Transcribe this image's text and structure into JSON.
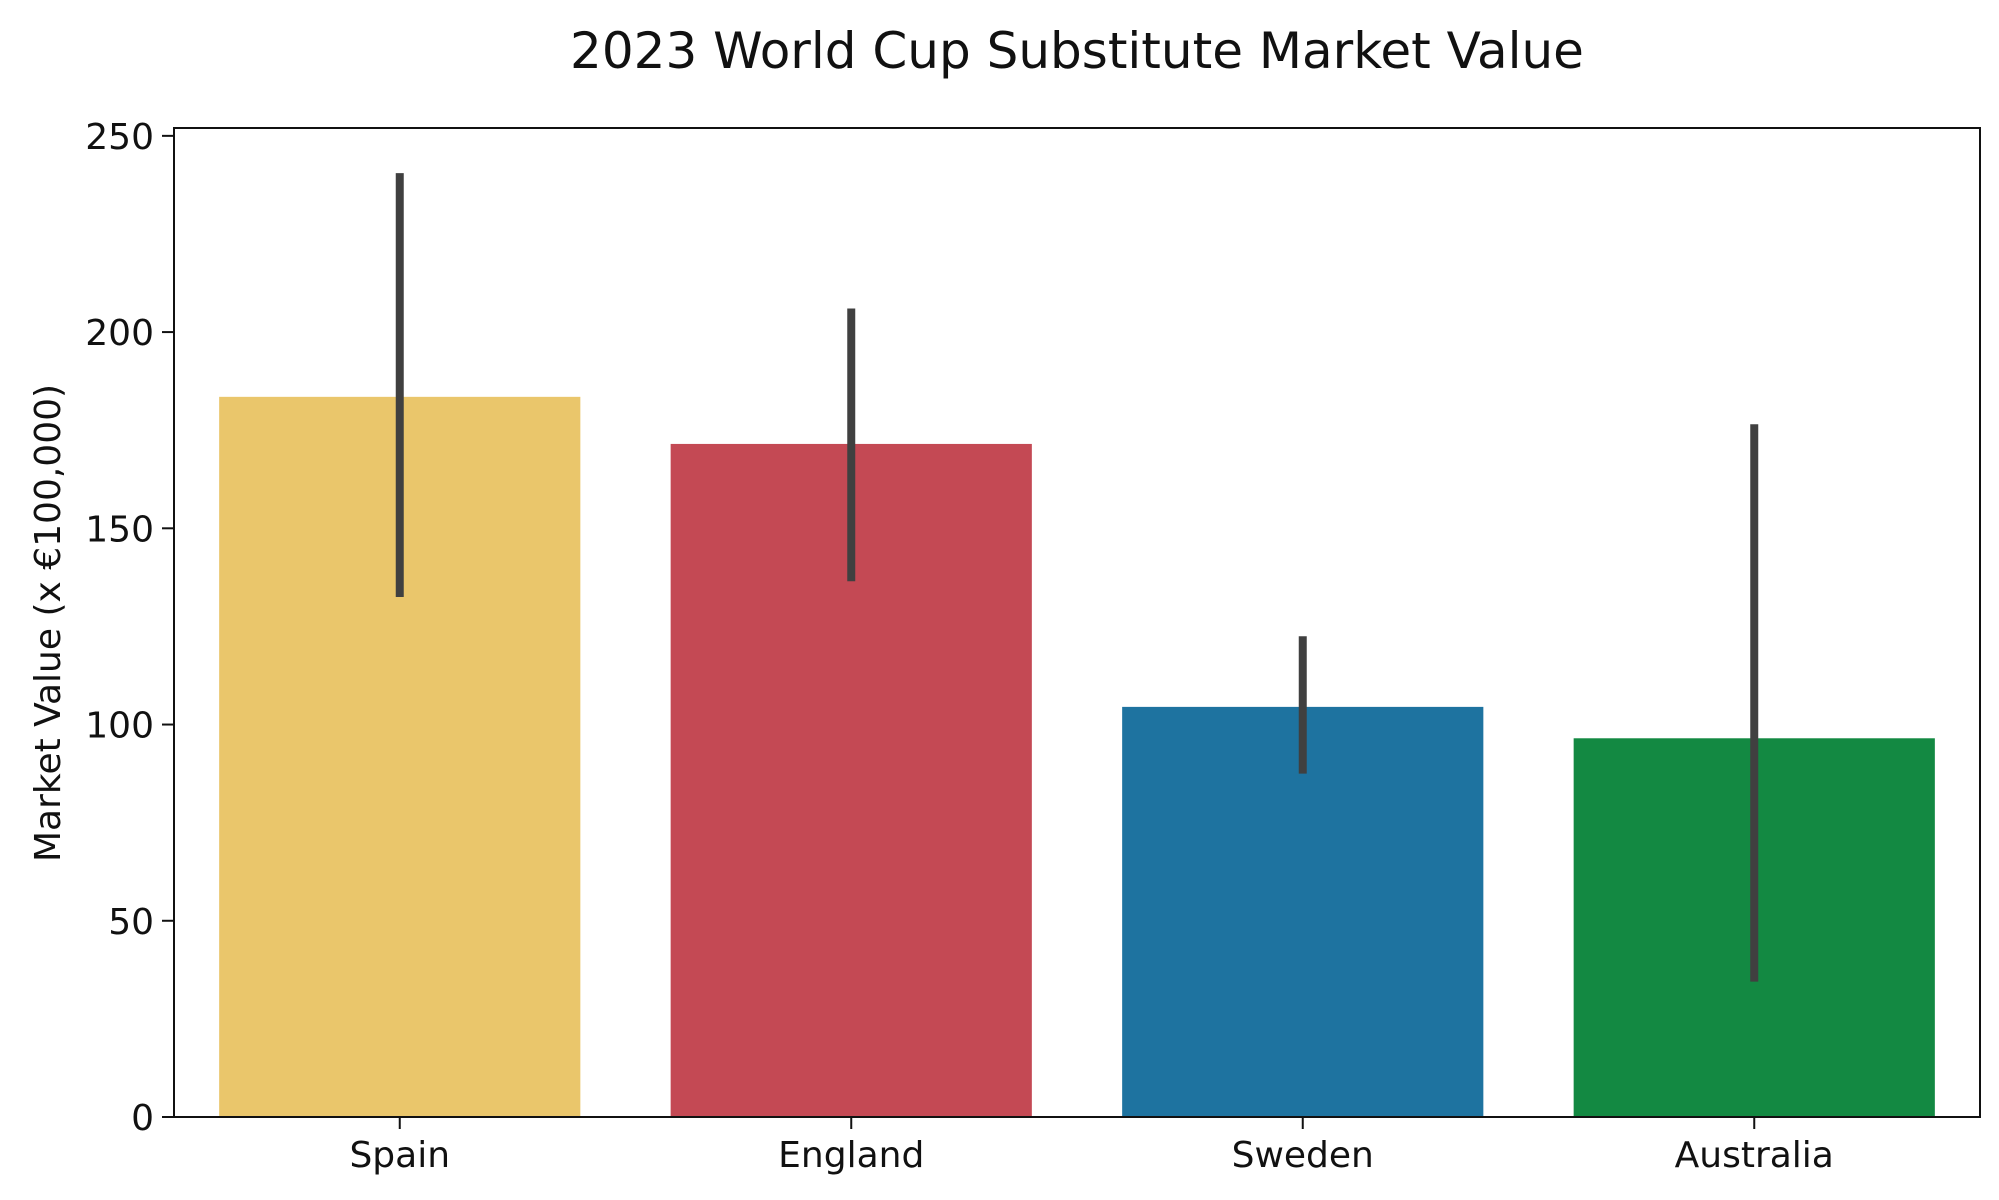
{
  "chart_data": {
    "type": "bar",
    "title": "2023 World Cup Substitute Market Value",
    "xlabel": "",
    "ylabel": "Market Value (x €100,000)",
    "categories": [
      "Spain",
      "England",
      "Sweden",
      "Australia"
    ],
    "values": [
      183.5,
      171.5,
      104.5,
      96.5
    ],
    "error_low": [
      132.5,
      136.5,
      87.5,
      34.5
    ],
    "error_high": [
      240.5,
      206.0,
      122.5,
      176.5
    ],
    "colors": [
      "#EAC66B",
      "#C44954",
      "#1E73A0",
      "#138942"
    ],
    "error_color": "#404040",
    "ylim": [
      0,
      252
    ],
    "yticks": [
      0,
      50,
      100,
      150,
      200,
      250
    ],
    "grid": false,
    "legend": "none"
  }
}
